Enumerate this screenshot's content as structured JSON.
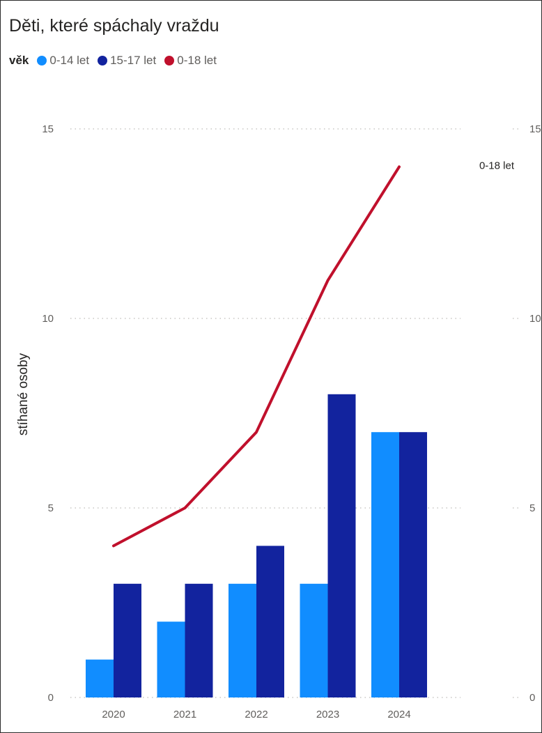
{
  "title": "Děti, které spáchaly vraždu",
  "legend": {
    "title": "věk",
    "items": [
      {
        "label": "0-14 let",
        "color": "#118dff"
      },
      {
        "label": "15-17 let",
        "color": "#12239e"
      },
      {
        "label": "0-18 let",
        "color": "#c0102c"
      }
    ]
  },
  "chart_data": {
    "type": "bar",
    "categories": [
      "2020",
      "2021",
      "2022",
      "2023",
      "2024"
    ],
    "series": [
      {
        "name": "0-14 let",
        "type": "bar",
        "color": "#118dff",
        "values": [
          1,
          2,
          3,
          3,
          7
        ]
      },
      {
        "name": "15-17 let",
        "type": "bar",
        "color": "#12239e",
        "values": [
          3,
          3,
          4,
          8,
          7
        ]
      },
      {
        "name": "0-18 let",
        "type": "line",
        "color": "#c0102c",
        "values": [
          4,
          5,
          7,
          11,
          14
        ]
      }
    ],
    "ylabel": "stíhané osoby",
    "ylim": [
      0,
      15
    ],
    "yticks": [
      "0",
      "5",
      "10",
      "15"
    ],
    "secondary_yticks": [
      "0",
      "5",
      "10",
      "15"
    ],
    "line_end_label": "0-18 let",
    "grid": true
  }
}
